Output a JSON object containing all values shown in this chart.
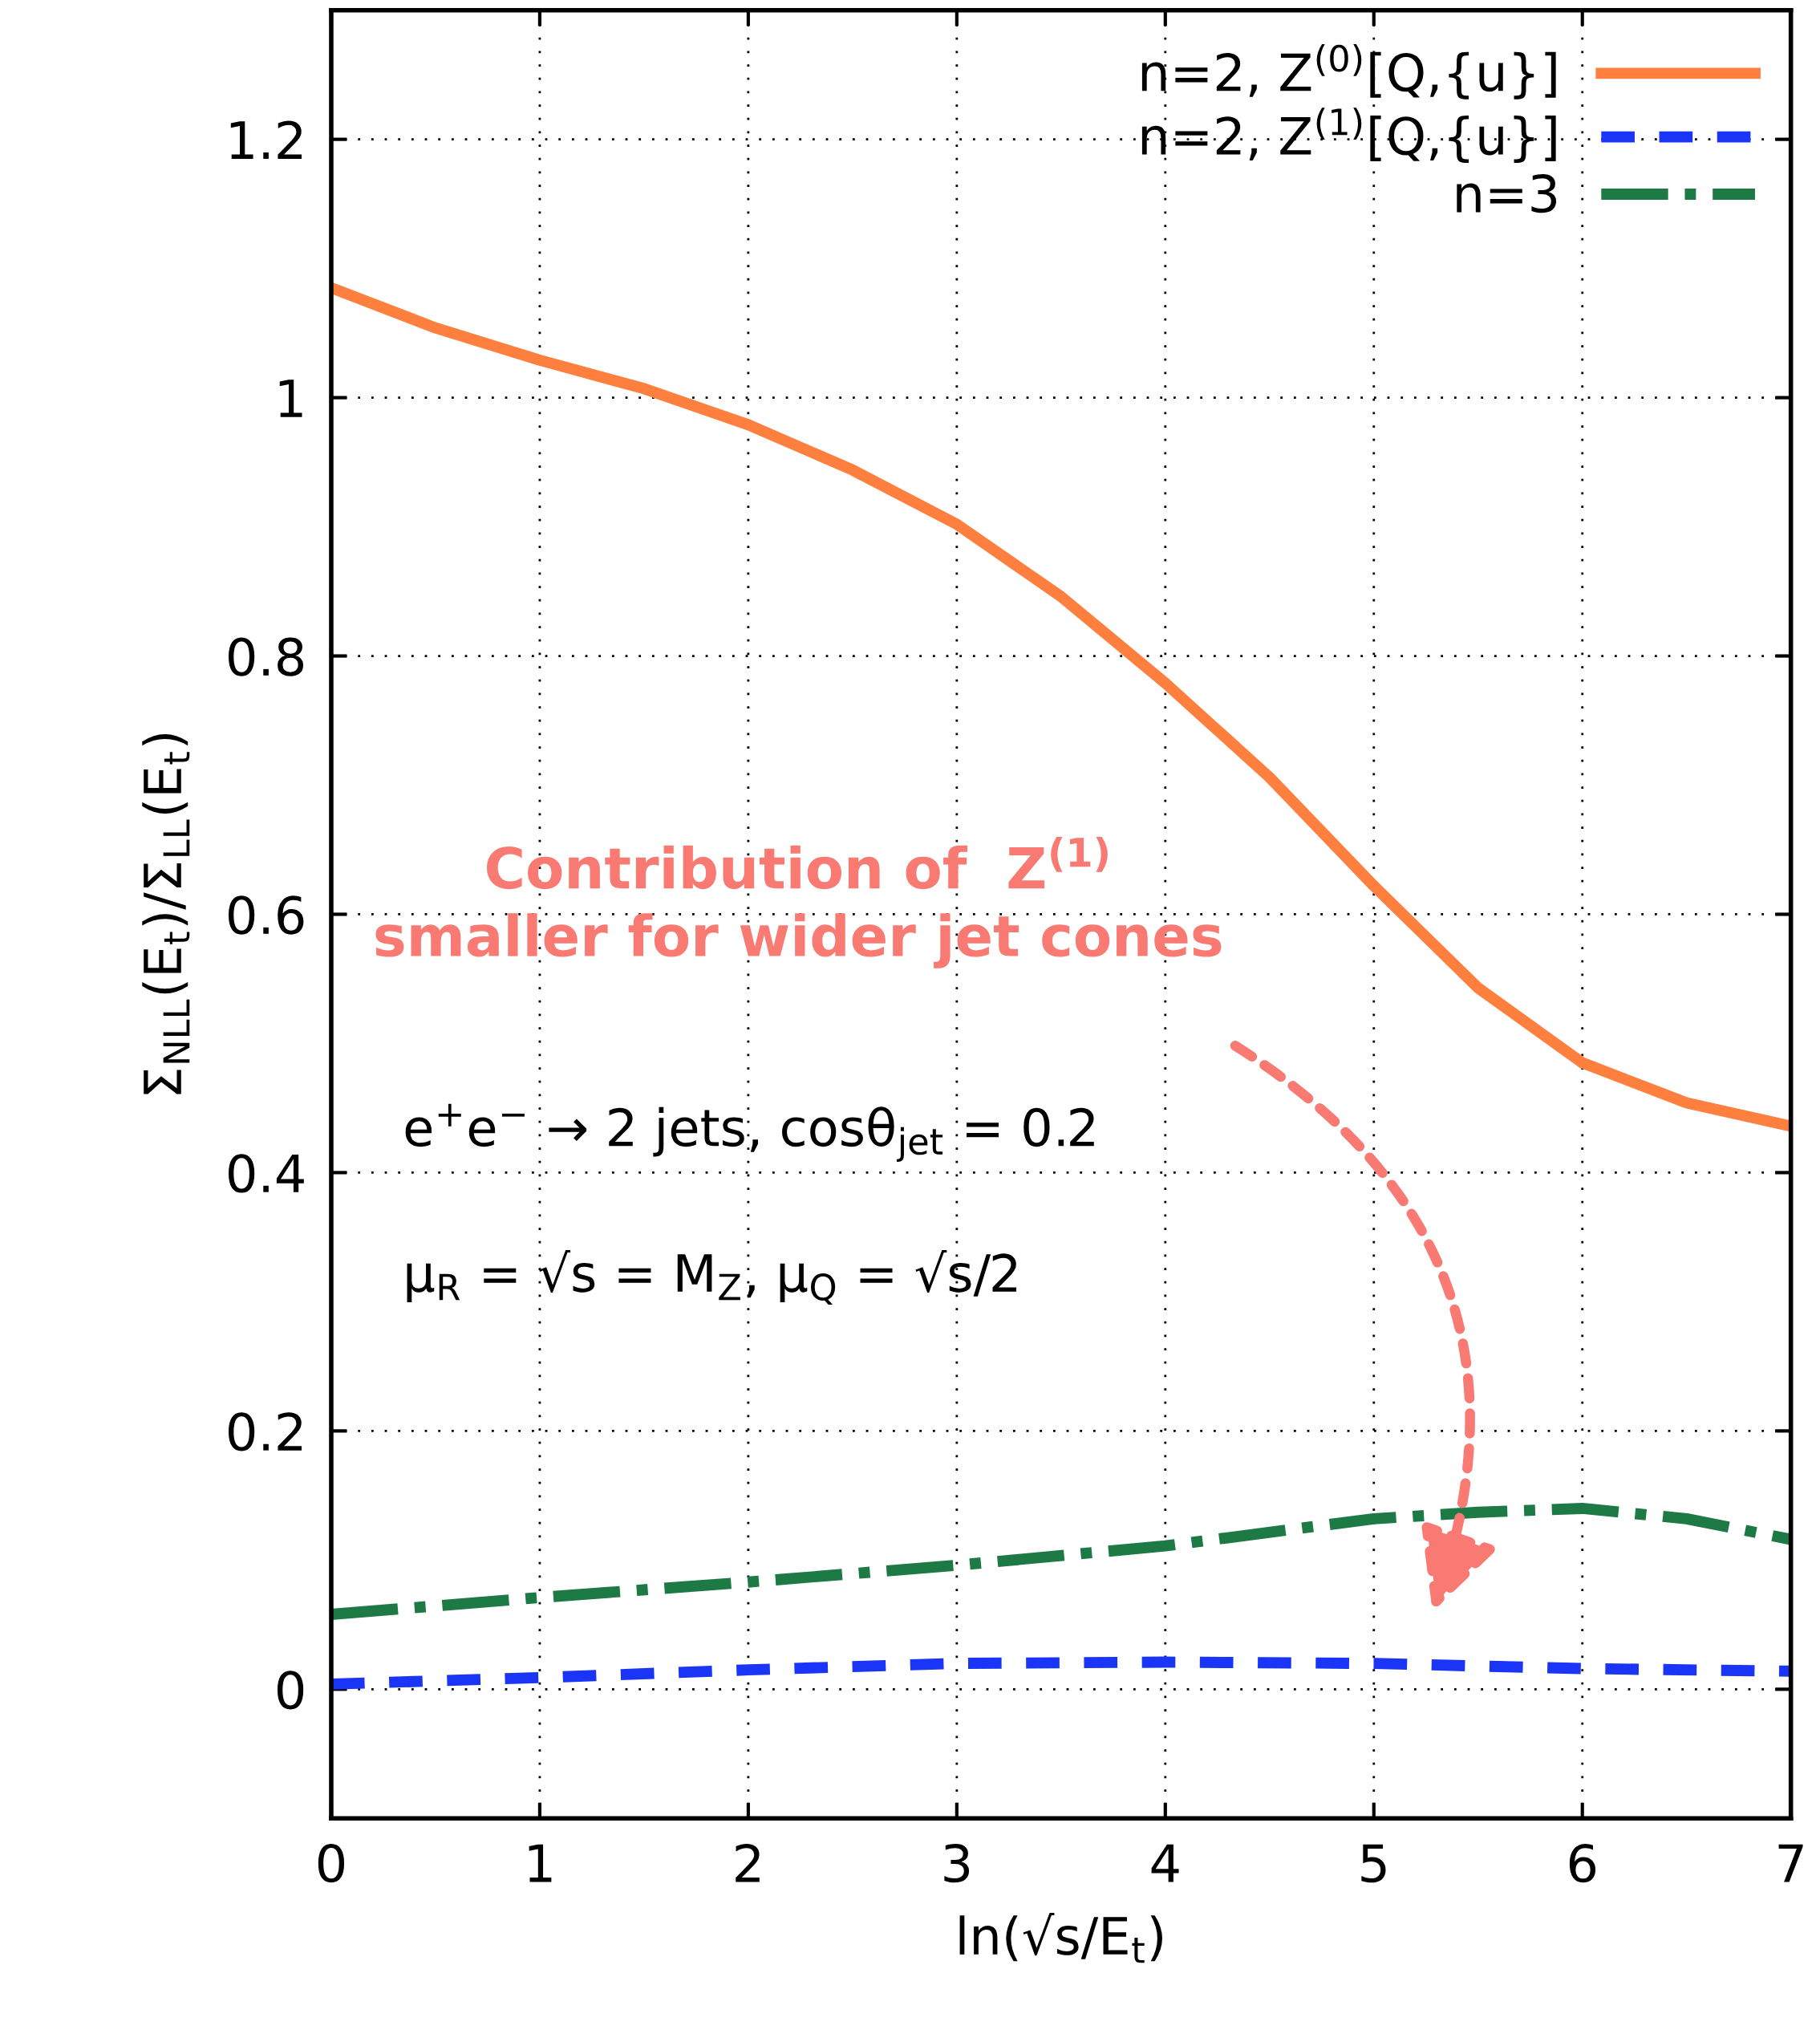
{
  "chart_data": {
    "type": "line",
    "xlabel": "ln(√s/E$_{t}$)",
    "ylabel": "Σ$_{NLL}$(E$_{t}$)/Σ$_{LL}$(E$_{t}$)",
    "xlim": [
      0,
      7
    ],
    "ylim": [
      -0.1,
      1.3
    ],
    "xticks": [
      0,
      1,
      2,
      3,
      4,
      5,
      6,
      7
    ],
    "yticks": [
      0,
      0.2,
      0.4,
      0.6,
      0.8,
      1,
      1.2
    ],
    "grid": true,
    "legend": "top right",
    "series": [
      {
        "name": "n=2, Z$^{(0)}$[Q,{u}]",
        "color": "#ff7f3f",
        "line_style": "solid",
        "x": [
          0,
          0.5,
          1,
          1.5,
          2,
          2.5,
          3,
          3.5,
          4,
          4.5,
          5,
          5.5,
          6,
          6.5,
          7
        ],
        "values": [
          1.085,
          1.054,
          1.029,
          1.007,
          0.979,
          0.944,
          0.902,
          0.846,
          0.779,
          0.706,
          0.622,
          0.543,
          0.485,
          0.454,
          0.436
        ]
      },
      {
        "name": "n=2, Z$^{(1)}$[Q,{u}]",
        "color": "#1a35f5",
        "line_style": "dashed",
        "x": [
          0,
          1,
          2,
          3,
          4,
          5,
          6,
          7
        ],
        "values": [
          0.004,
          0.009,
          0.015,
          0.02,
          0.021,
          0.02,
          0.016,
          0.014
        ]
      },
      {
        "name": "n=3",
        "color": "#1e7a45",
        "line_style": "dashdot",
        "x": [
          0,
          1,
          2,
          3,
          4,
          5,
          5.5,
          6,
          6.5,
          7
        ],
        "values": [
          0.058,
          0.071,
          0.083,
          0.096,
          0.111,
          0.132,
          0.137,
          0.14,
          0.132,
          0.116
        ]
      }
    ],
    "annotations": [
      "Contribution of  Z$^{(1)}$\nsmaller for wider jet cones",
      "e$^{+}$e$^{−}$ → 2 jets, cosθ$_{jet}$ = 0.2",
      "μ$_{R}$ = √s = M$_{Z}$, μ$_{Q}$ = √s/2"
    ]
  }
}
